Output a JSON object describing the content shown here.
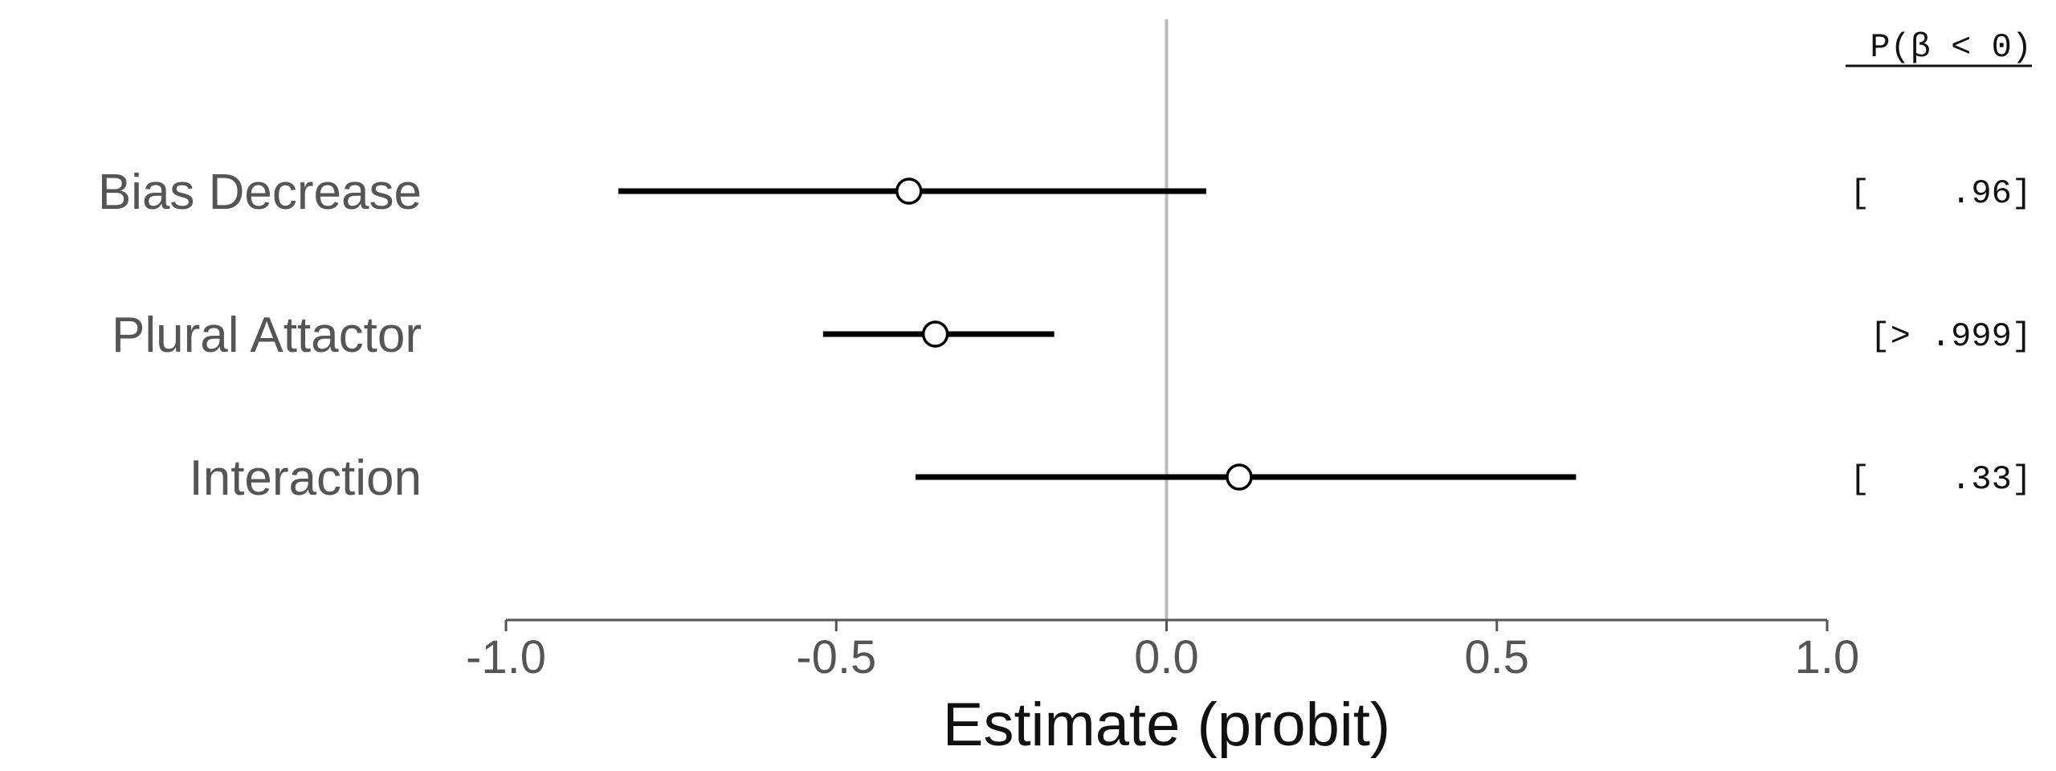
{
  "chart_data": {
    "type": "forest",
    "xlabel": "Estimate (probit)",
    "xlim": [
      -1.0,
      1.0
    ],
    "xticks": [
      -1.0,
      -0.5,
      0.0,
      0.5,
      1.0
    ],
    "xtick_labels": [
      "-1.0",
      "-0.5",
      "0.0",
      "0.5",
      "1.0"
    ],
    "reference_line": 0.0,
    "grid": false,
    "probability_header": "P(β < 0)",
    "rows": [
      {
        "label": "Bias Decrease",
        "estimate": -0.39,
        "lower": -0.83,
        "upper": 0.06,
        "prob": "[    .96]"
      },
      {
        "label": "Plural Attactor",
        "estimate": -0.35,
        "lower": -0.52,
        "upper": -0.17,
        "prob": "[> .999]"
      },
      {
        "label": "Interaction",
        "estimate": 0.11,
        "lower": -0.38,
        "upper": 0.62,
        "prob": "[    .33]"
      }
    ],
    "colors": {
      "interval": "#000000",
      "point_fill": "#ffffff",
      "reference": "#bbbbbb",
      "axis": "#555555"
    }
  }
}
